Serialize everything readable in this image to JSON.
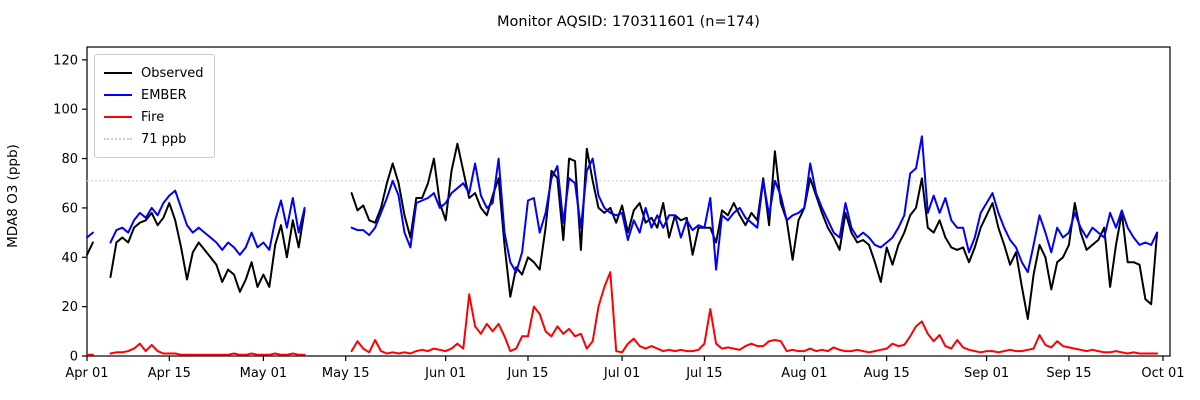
{
  "figure": {
    "background": "#ffffff"
  },
  "chart_data": {
    "type": "line",
    "title": "Monitor AQSID: 170311601 (n=174)",
    "xlabel": "",
    "ylabel": "MDA8 O3 (ppb)",
    "grid": false,
    "legend_position": "upper left",
    "ylim": [
      0,
      125.2
    ],
    "y_ticks": [
      0,
      20,
      40,
      60,
      80,
      100,
      120
    ],
    "x_start_date": "Apr 01",
    "x_end_date": "Oct 01",
    "x_days_total": 183,
    "x_tick_days": [
      0,
      14,
      30,
      44,
      61,
      75,
      91,
      105,
      122,
      136,
      153,
      167,
      183
    ],
    "x_tick_labels": [
      "Apr 01",
      "Apr 15",
      "May 01",
      "May 15",
      "Jun 01",
      "Jun 15",
      "Jul 01",
      "Jul 15",
      "Aug 01",
      "Aug 15",
      "Sep 01",
      "Sep 15",
      "Oct 01"
    ],
    "threshold": {
      "label": "71 ppb",
      "value": 71,
      "color": "#cccccc",
      "style": "dotted"
    },
    "n_points": 174,
    "series": [
      {
        "name": "Observed",
        "color": "#000000",
        "style": "solid",
        "values": [
          41,
          46,
          null,
          null,
          32,
          46,
          48,
          46,
          52,
          54,
          55,
          58,
          53,
          56,
          62,
          55,
          44,
          31,
          42,
          46,
          43,
          40,
          37,
          30,
          35,
          33,
          26,
          31,
          38,
          28,
          33,
          28,
          45,
          53,
          40,
          55,
          44,
          59,
          null,
          null,
          null,
          null,
          null,
          null,
          null,
          66,
          59,
          61,
          55,
          54,
          60,
          70,
          78,
          70,
          57,
          48,
          64,
          64,
          70,
          80,
          62,
          55,
          75,
          86,
          75,
          64,
          66,
          60,
          57,
          65,
          72,
          45,
          24,
          36,
          33,
          40,
          38,
          35,
          52,
          75,
          72,
          47,
          80,
          79,
          43,
          84,
          71,
          60,
          58,
          60,
          54,
          61,
          50,
          59,
          62,
          54,
          56,
          52,
          62,
          48,
          57,
          55,
          56,
          41,
          52,
          52,
          52,
          46,
          59,
          57,
          62,
          57,
          53,
          58,
          55,
          72,
          53,
          83,
          62,
          55,
          39,
          55,
          60,
          72,
          65,
          58,
          52,
          48,
          43,
          58,
          50,
          46,
          47,
          45,
          38,
          30,
          44,
          37,
          45,
          50,
          57,
          60,
          72,
          52,
          50,
          55,
          48,
          44,
          43,
          44,
          38,
          44,
          52,
          57,
          62,
          52,
          45,
          37,
          42,
          28,
          15,
          33,
          45,
          40,
          27,
          38,
          40,
          45,
          62,
          50,
          43,
          45,
          47,
          52,
          28,
          45,
          58,
          38,
          38,
          37,
          23,
          21,
          50
        ]
      },
      {
        "name": "EMBER",
        "color": "#0000ff",
        "style": "solid",
        "values": [
          48,
          50,
          null,
          null,
          46,
          51,
          52,
          50,
          55,
          58,
          56,
          60,
          57,
          62,
          65,
          67,
          60,
          53,
          50,
          52,
          50,
          48,
          46,
          43,
          46,
          44,
          41,
          44,
          50,
          44,
          46,
          43,
          55,
          63,
          52,
          64,
          50,
          60,
          null,
          null,
          null,
          null,
          null,
          null,
          null,
          52,
          51,
          51,
          49,
          52,
          58,
          64,
          71,
          65,
          50,
          44,
          62,
          63,
          64,
          66,
          60,
          62,
          66,
          68,
          70,
          66,
          78,
          65,
          60,
          62,
          80,
          50,
          38,
          34,
          42,
          63,
          64,
          50,
          58,
          72,
          77,
          54,
          72,
          70,
          52,
          75,
          80,
          65,
          60,
          58,
          57,
          58,
          47,
          55,
          50,
          60,
          52,
          57,
          52,
          57,
          57,
          48,
          55,
          51,
          53,
          52,
          64,
          35,
          57,
          55,
          58,
          60,
          56,
          54,
          52,
          71,
          57,
          71,
          65,
          55,
          57,
          58,
          60,
          78,
          66,
          60,
          55,
          50,
          48,
          62,
          52,
          48,
          50,
          48,
          45,
          44,
          46,
          48,
          52,
          57,
          74,
          76,
          89,
          58,
          65,
          58,
          64,
          55,
          52,
          52,
          42,
          48,
          58,
          62,
          66,
          58,
          52,
          47,
          44,
          38,
          34,
          45,
          57,
          50,
          42,
          52,
          48,
          50,
          58,
          52,
          48,
          52,
          50,
          48,
          58,
          52,
          59,
          52,
          48,
          45,
          46,
          45,
          50
        ]
      },
      {
        "name": "Fire",
        "color": "#ff0000",
        "style": "solid",
        "values": [
          0.5,
          0.5,
          null,
          null,
          1,
          1.5,
          1.5,
          2,
          3,
          5,
          2,
          4.5,
          2,
          1,
          1,
          1,
          0.5,
          0.5,
          0.5,
          0.5,
          0.5,
          0.5,
          0.5,
          0.5,
          0.5,
          1,
          0.5,
          0.5,
          1,
          0.5,
          0.5,
          0.5,
          1,
          0.5,
          0.5,
          1,
          0.5,
          0.5,
          null,
          null,
          null,
          null,
          null,
          null,
          null,
          2,
          6,
          3,
          1.5,
          6.5,
          2,
          1,
          1.5,
          1,
          1.5,
          1,
          2,
          2.5,
          2,
          3,
          2.5,
          2,
          3,
          5,
          3,
          25,
          12,
          9,
          13,
          10,
          13,
          8,
          2,
          3,
          8,
          8,
          20,
          17,
          10,
          8,
          12,
          9,
          11,
          8,
          9,
          3,
          6,
          20,
          28,
          34,
          2,
          1.5,
          5,
          7,
          4,
          3,
          4,
          3,
          2,
          2.5,
          2,
          2.5,
          2,
          2,
          2.5,
          5,
          19,
          5,
          3,
          3.5,
          3,
          2.5,
          4,
          5,
          4,
          4,
          6,
          6.5,
          6,
          2,
          2.5,
          2,
          2,
          3,
          2,
          2.5,
          2,
          3.5,
          2.5,
          2,
          2,
          2.5,
          2,
          1.5,
          2,
          2.5,
          3,
          5,
          4,
          4.5,
          8,
          12,
          14,
          9,
          6,
          8.5,
          4,
          3,
          6.5,
          3.5,
          2.5,
          2,
          1.5,
          2,
          2,
          1.5,
          2,
          2.5,
          2,
          2,
          2.5,
          3,
          8.5,
          4.5,
          3.5,
          6,
          4,
          3.5,
          3,
          2.5,
          2,
          2.5,
          2,
          1.5,
          1.5,
          2,
          1.5,
          1,
          1.5,
          1,
          1,
          1,
          1
        ]
      }
    ]
  },
  "legend": {
    "items": [
      {
        "label": "Observed",
        "color": "#000000",
        "style": "solid"
      },
      {
        "label": "EMBER",
        "color": "#0000ff",
        "style": "solid"
      },
      {
        "label": "Fire",
        "color": "#ff0000",
        "style": "solid"
      },
      {
        "label": "71 ppb",
        "color": "#cccccc",
        "style": "dotted"
      }
    ]
  }
}
